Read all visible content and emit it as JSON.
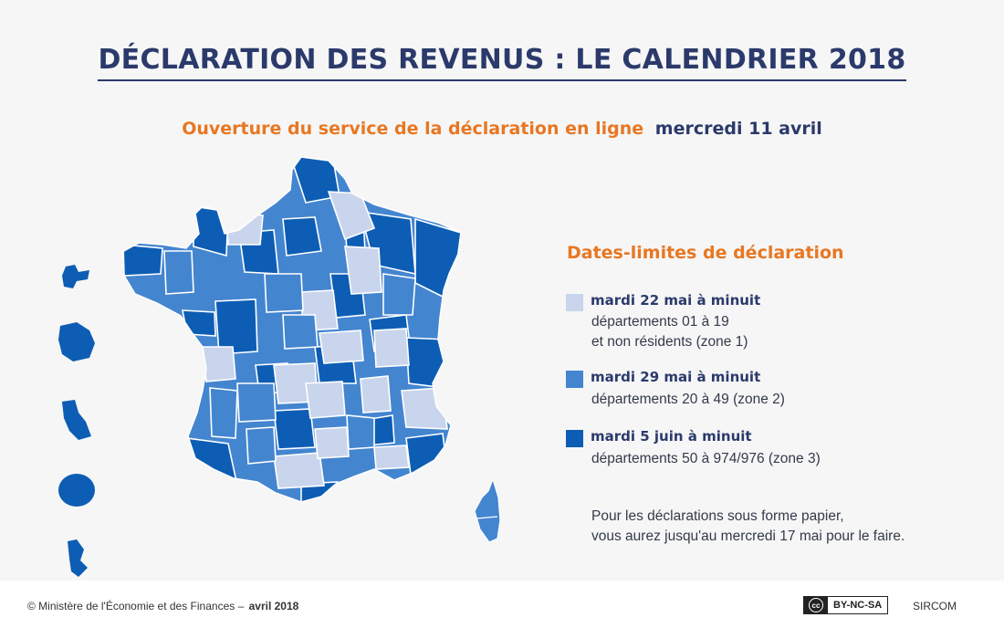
{
  "title": "DÉCLARATION DES REVENUS : LE CALENDRIER 2018",
  "subtitle": {
    "part1": "Ouverture du service de la déclaration en ligne",
    "part2": "mercredi 11 avril"
  },
  "legend": {
    "title": "Dates-limites de déclaration",
    "items": [
      {
        "title": "mardi 22 mai à minuit",
        "line1": "départements 01 à 19",
        "line2": "et non résidents (zone 1)",
        "color": "#c9d5ec"
      },
      {
        "title": "mardi 29 mai à minuit",
        "line1": "départements 20 à 49 (zone 2)",
        "line2": "",
        "color": "#4485d0"
      },
      {
        "title": "mardi 5 juin à minuit",
        "line1": "départements 50 à 974/976 (zone 3)",
        "line2": "",
        "color": "#0d5db4"
      }
    ]
  },
  "note": {
    "line1": "Pour les déclarations sous forme papier,",
    "line2": "vous aurez jusqu'au mercredi 17 mai pour le faire."
  },
  "footer": {
    "credit": "© Ministère de l'Économie et des Finances –",
    "credit_date": "avril 2018",
    "cc": "cc",
    "license": "BY-NC-SA",
    "agency": "SIRCOM"
  },
  "colors": {
    "title": "#2b3a6b",
    "accent": "#e87722",
    "zone1": "#c9d5ec",
    "zone2": "#4485d0",
    "zone3": "#0d5db4",
    "border": "#ffffff"
  }
}
